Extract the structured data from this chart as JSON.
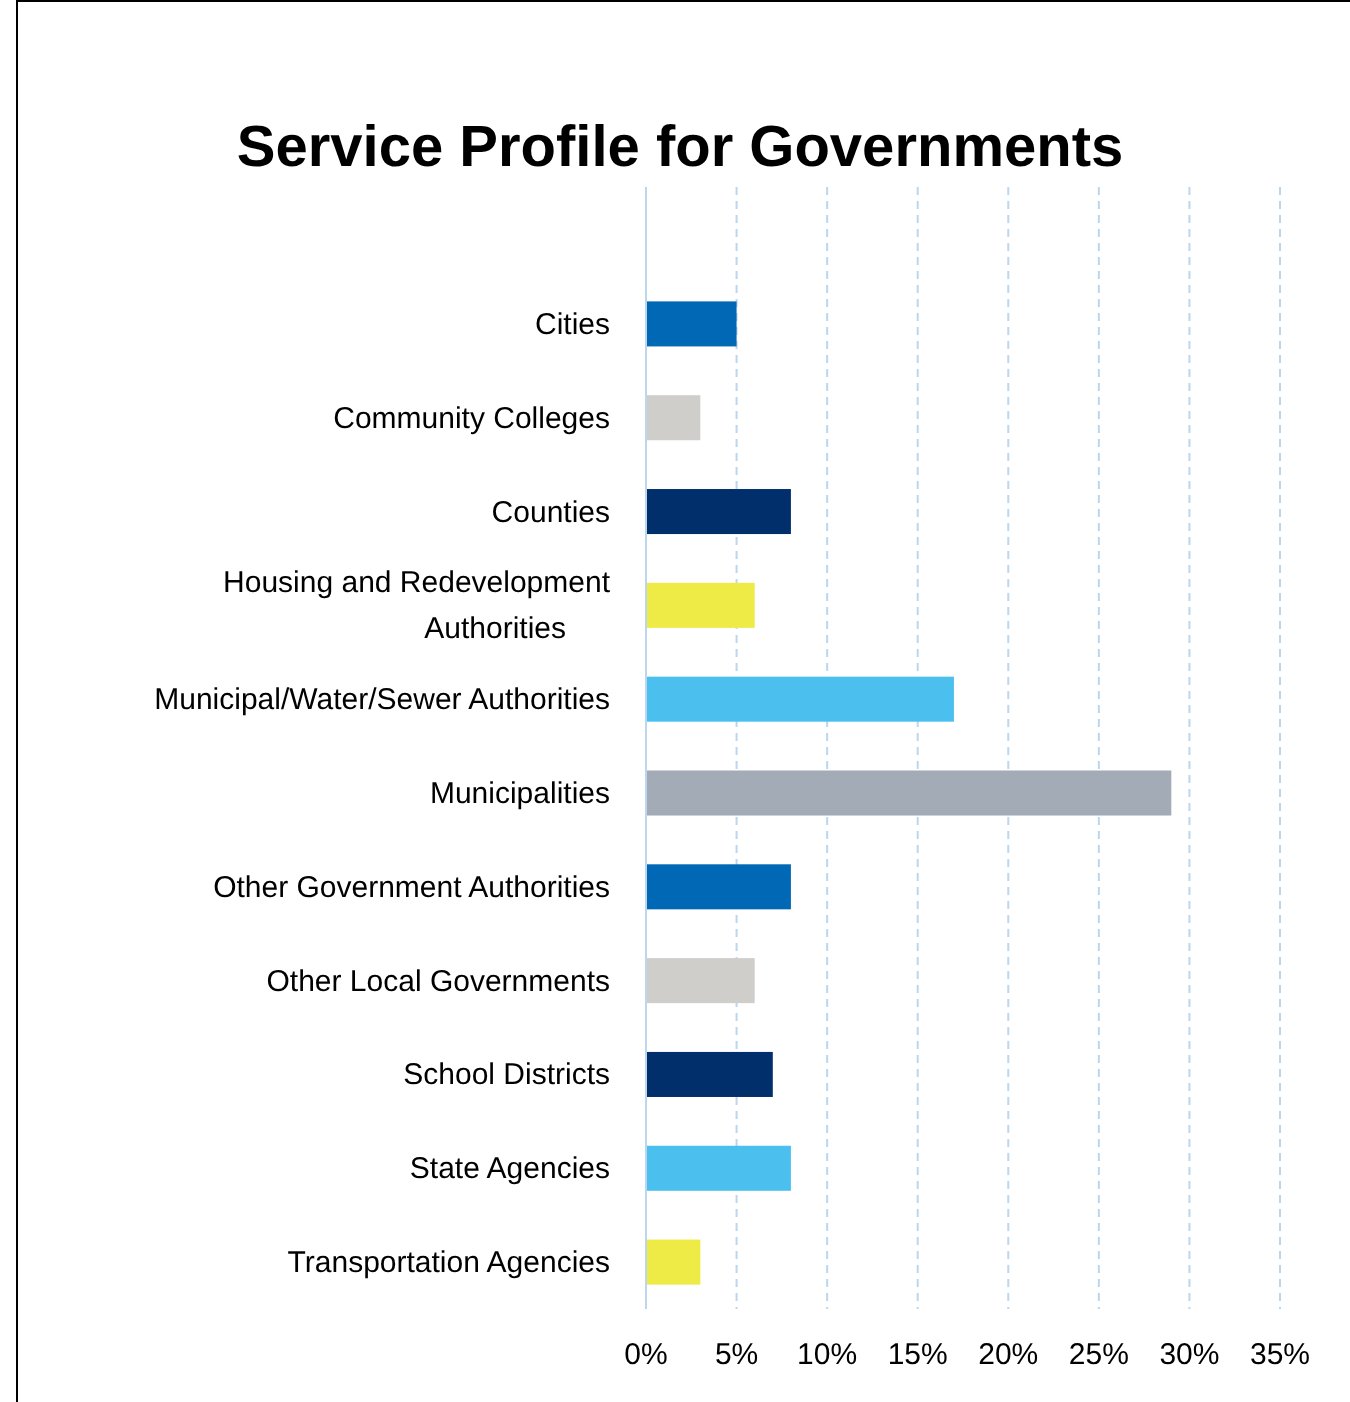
{
  "chart_data": {
    "type": "bar",
    "orientation": "horizontal",
    "title": "Service Profile for Governments",
    "categories": [
      "Cities",
      "Community Colleges",
      "Counties",
      "Housing and Redevelopment Authorities",
      "Municipal/Water/Sewer Authorities",
      "Municipalities",
      "Other Government Authorities",
      "Other Local Governments",
      "School Districts",
      "State Agencies",
      "Transportation Agencies"
    ],
    "values": [
      5,
      3,
      8,
      6,
      17,
      29,
      8,
      6,
      7,
      8,
      3
    ],
    "colors": [
      "#0068b4",
      "#d0cecb",
      "#002f6c",
      "#eeea46",
      "#4bc0ef",
      "#a3abb7",
      "#0068b4",
      "#d0cecb",
      "#002f6c",
      "#4bc0ef",
      "#eeea46"
    ],
    "xlim": [
      0,
      35
    ],
    "xticks": [
      {
        "value": 0,
        "label": "0%"
      },
      {
        "value": 5,
        "label": "5%"
      },
      {
        "value": 10,
        "label": "10%"
      },
      {
        "value": 15,
        "label": "15%"
      },
      {
        "value": 20,
        "label": "20%"
      },
      {
        "value": 25,
        "label": "25%"
      },
      {
        "value": 30,
        "label": "30%"
      },
      {
        "value": 35,
        "label": "35%"
      }
    ],
    "grid": "x"
  }
}
